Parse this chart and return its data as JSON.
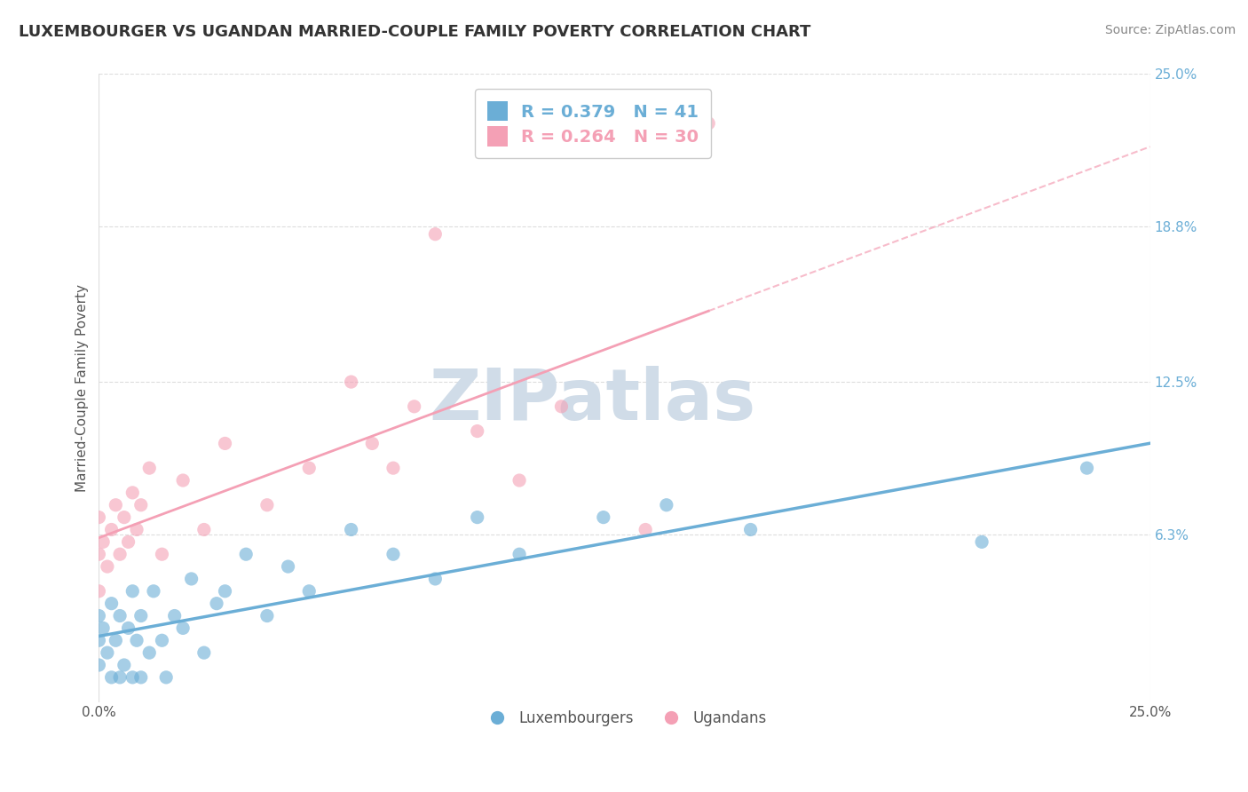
{
  "title": "LUXEMBOURGER VS UGANDAN MARRIED-COUPLE FAMILY POVERTY CORRELATION CHART",
  "source": "Source: ZipAtlas.com",
  "ylabel": "Married-Couple Family Poverty",
  "xlim": [
    0.0,
    0.25
  ],
  "ylim": [
    -0.005,
    0.25
  ],
  "xticks": [
    0.0,
    0.25
  ],
  "xticklabels": [
    "0.0%",
    "25.0%"
  ],
  "ytick_labels": [
    "6.3%",
    "12.5%",
    "18.8%",
    "25.0%"
  ],
  "ytick_values": [
    0.063,
    0.125,
    0.188,
    0.25
  ],
  "grid_color": "#dddddd",
  "lux_color": "#6baed6",
  "uga_color": "#f4a0b5",
  "lux_R": 0.379,
  "lux_N": 41,
  "uga_R": 0.264,
  "uga_N": 30,
  "lux_points_x": [
    0.0,
    0.0,
    0.0,
    0.001,
    0.002,
    0.003,
    0.003,
    0.004,
    0.005,
    0.005,
    0.006,
    0.007,
    0.008,
    0.008,
    0.009,
    0.01,
    0.01,
    0.012,
    0.013,
    0.015,
    0.016,
    0.018,
    0.02,
    0.022,
    0.025,
    0.028,
    0.03,
    0.035,
    0.04,
    0.045,
    0.05,
    0.06,
    0.07,
    0.08,
    0.09,
    0.1,
    0.12,
    0.135,
    0.155,
    0.21,
    0.235
  ],
  "lux_points_y": [
    0.01,
    0.02,
    0.03,
    0.025,
    0.015,
    0.005,
    0.035,
    0.02,
    0.005,
    0.03,
    0.01,
    0.025,
    0.005,
    0.04,
    0.02,
    0.005,
    0.03,
    0.015,
    0.04,
    0.02,
    0.005,
    0.03,
    0.025,
    0.045,
    0.015,
    0.035,
    0.04,
    0.055,
    0.03,
    0.05,
    0.04,
    0.065,
    0.055,
    0.045,
    0.07,
    0.055,
    0.07,
    0.075,
    0.065,
    0.06,
    0.09
  ],
  "uga_points_x": [
    0.0,
    0.0,
    0.0,
    0.001,
    0.002,
    0.003,
    0.004,
    0.005,
    0.006,
    0.007,
    0.008,
    0.009,
    0.01,
    0.012,
    0.015,
    0.02,
    0.025,
    0.03,
    0.04,
    0.05,
    0.06,
    0.065,
    0.07,
    0.075,
    0.08,
    0.09,
    0.1,
    0.11,
    0.13,
    0.145
  ],
  "uga_points_y": [
    0.04,
    0.055,
    0.07,
    0.06,
    0.05,
    0.065,
    0.075,
    0.055,
    0.07,
    0.06,
    0.08,
    0.065,
    0.075,
    0.09,
    0.055,
    0.085,
    0.065,
    0.1,
    0.075,
    0.09,
    0.125,
    0.1,
    0.09,
    0.115,
    0.185,
    0.105,
    0.085,
    0.115,
    0.065,
    0.23
  ],
  "watermark_text": "ZIPatlas",
  "watermark_color": "#d0dce8",
  "watermark_color2": "#f0d0da"
}
